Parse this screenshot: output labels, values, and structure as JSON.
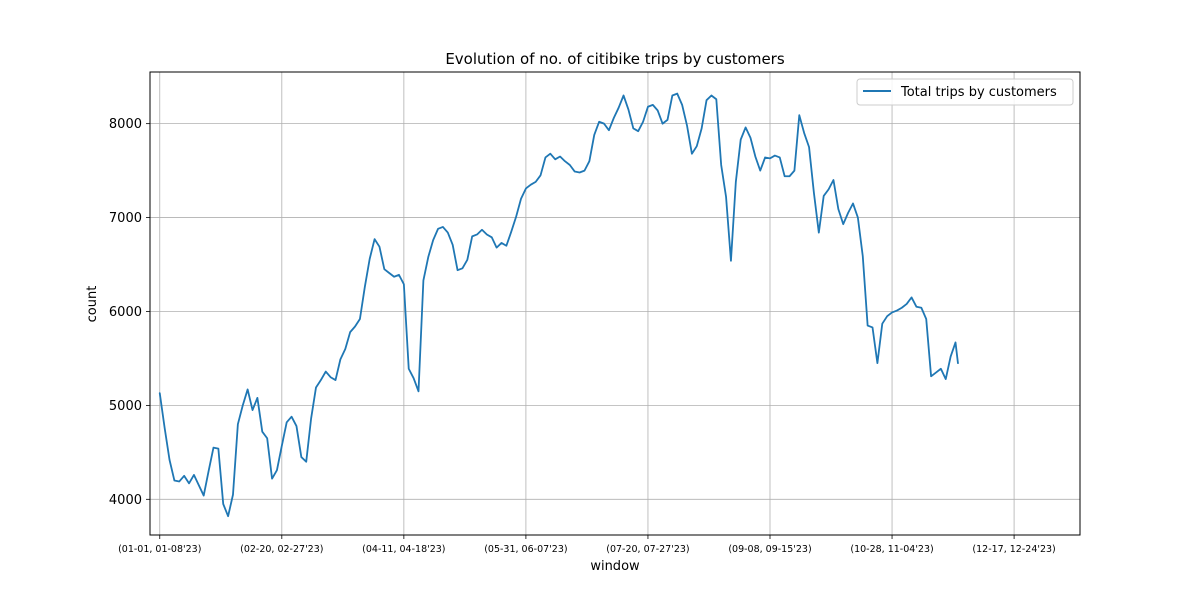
{
  "chart_data": {
    "type": "line",
    "title": "Evolution of no. of citibike trips by customers",
    "xlabel": "window",
    "ylabel": "count",
    "xlim": [
      -4,
      377
    ],
    "ylim": [
      3620,
      8550
    ],
    "yticks": [
      4000,
      5000,
      6000,
      7000,
      8000
    ],
    "xticks": [
      {
        "pos": 0,
        "label": "(01-01, 01-08'23)"
      },
      {
        "pos": 50,
        "label": "(02-20, 02-27'23)"
      },
      {
        "pos": 100,
        "label": "(04-11, 04-18'23)"
      },
      {
        "pos": 150,
        "label": "(05-31, 06-07'23)"
      },
      {
        "pos": 200,
        "label": "(07-20, 07-27'23)"
      },
      {
        "pos": 250,
        "label": "(09-08, 09-15'23)"
      },
      {
        "pos": 300,
        "label": "(10-28, 11-04'23)"
      },
      {
        "pos": 350,
        "label": "(12-17, 12-24'23)"
      }
    ],
    "grid": true,
    "legend_position": "top-right",
    "series": [
      {
        "name": "Total trips by customers",
        "color": "#1f77b4",
        "points": [
          [
            0,
            5130
          ],
          [
            2,
            4760
          ],
          [
            4,
            4420
          ],
          [
            6,
            4200
          ],
          [
            8,
            4190
          ],
          [
            10,
            4250
          ],
          [
            12,
            4170
          ],
          [
            14,
            4260
          ],
          [
            16,
            4150
          ],
          [
            18,
            4040
          ],
          [
            20,
            4300
          ],
          [
            22,
            4550
          ],
          [
            24,
            4540
          ],
          [
            26,
            3950
          ],
          [
            28,
            3820
          ],
          [
            30,
            4050
          ],
          [
            32,
            4800
          ],
          [
            34,
            5000
          ],
          [
            36,
            5170
          ],
          [
            38,
            4950
          ],
          [
            40,
            5080
          ],
          [
            42,
            4720
          ],
          [
            44,
            4650
          ],
          [
            46,
            4220
          ],
          [
            48,
            4310
          ],
          [
            50,
            4570
          ],
          [
            52,
            4820
          ],
          [
            54,
            4880
          ],
          [
            56,
            4780
          ],
          [
            58,
            4450
          ],
          [
            60,
            4400
          ],
          [
            62,
            4860
          ],
          [
            64,
            5190
          ],
          [
            66,
            5270
          ],
          [
            68,
            5360
          ],
          [
            70,
            5300
          ],
          [
            72,
            5270
          ],
          [
            74,
            5490
          ],
          [
            76,
            5600
          ],
          [
            78,
            5780
          ],
          [
            80,
            5840
          ],
          [
            82,
            5920
          ],
          [
            84,
            6260
          ],
          [
            86,
            6560
          ],
          [
            88,
            6770
          ],
          [
            90,
            6690
          ],
          [
            92,
            6450
          ],
          [
            94,
            6410
          ],
          [
            96,
            6370
          ],
          [
            98,
            6390
          ],
          [
            100,
            6290
          ],
          [
            102,
            5390
          ],
          [
            104,
            5290
          ],
          [
            106,
            5150
          ],
          [
            108,
            6330
          ],
          [
            110,
            6580
          ],
          [
            112,
            6760
          ],
          [
            114,
            6880
          ],
          [
            116,
            6900
          ],
          [
            118,
            6840
          ],
          [
            120,
            6710
          ],
          [
            122,
            6440
          ],
          [
            124,
            6460
          ],
          [
            126,
            6550
          ],
          [
            128,
            6800
          ],
          [
            130,
            6820
          ],
          [
            132,
            6870
          ],
          [
            134,
            6820
          ],
          [
            136,
            6790
          ],
          [
            138,
            6680
          ],
          [
            140,
            6730
          ],
          [
            142,
            6700
          ],
          [
            144,
            6850
          ],
          [
            146,
            7010
          ],
          [
            148,
            7200
          ],
          [
            150,
            7310
          ],
          [
            152,
            7350
          ],
          [
            154,
            7380
          ],
          [
            156,
            7450
          ],
          [
            158,
            7640
          ],
          [
            160,
            7680
          ],
          [
            162,
            7620
          ],
          [
            164,
            7650
          ],
          [
            166,
            7600
          ],
          [
            168,
            7560
          ],
          [
            170,
            7490
          ],
          [
            172,
            7480
          ],
          [
            174,
            7500
          ],
          [
            176,
            7600
          ],
          [
            178,
            7880
          ],
          [
            180,
            8020
          ],
          [
            182,
            8000
          ],
          [
            184,
            7930
          ],
          [
            186,
            8060
          ],
          [
            188,
            8170
          ],
          [
            190,
            8300
          ],
          [
            192,
            8150
          ],
          [
            194,
            7950
          ],
          [
            196,
            7920
          ],
          [
            198,
            8020
          ],
          [
            200,
            8180
          ],
          [
            202,
            8200
          ],
          [
            204,
            8140
          ],
          [
            206,
            8000
          ],
          [
            208,
            8040
          ],
          [
            210,
            8300
          ],
          [
            212,
            8320
          ],
          [
            214,
            8200
          ],
          [
            216,
            7980
          ],
          [
            218,
            7680
          ],
          [
            220,
            7760
          ],
          [
            222,
            7950
          ],
          [
            224,
            8250
          ],
          [
            226,
            8300
          ],
          [
            228,
            8260
          ],
          [
            230,
            7560
          ],
          [
            232,
            7220
          ],
          [
            234,
            6540
          ],
          [
            236,
            7380
          ],
          [
            238,
            7830
          ],
          [
            240,
            7960
          ],
          [
            242,
            7850
          ],
          [
            244,
            7650
          ],
          [
            246,
            7500
          ],
          [
            248,
            7640
          ],
          [
            250,
            7630
          ],
          [
            252,
            7660
          ],
          [
            254,
            7640
          ],
          [
            256,
            7440
          ],
          [
            258,
            7440
          ],
          [
            260,
            7500
          ],
          [
            262,
            8090
          ],
          [
            264,
            7900
          ],
          [
            266,
            7750
          ],
          [
            268,
            7260
          ],
          [
            270,
            6840
          ],
          [
            272,
            7230
          ],
          [
            274,
            7300
          ],
          [
            276,
            7400
          ],
          [
            278,
            7090
          ],
          [
            280,
            6930
          ],
          [
            282,
            7050
          ],
          [
            284,
            7150
          ],
          [
            286,
            7000
          ],
          [
            288,
            6590
          ],
          [
            290,
            5850
          ],
          [
            292,
            5830
          ],
          [
            294,
            5450
          ],
          [
            296,
            5870
          ],
          [
            298,
            5950
          ],
          [
            300,
            5990
          ],
          [
            302,
            6010
          ],
          [
            304,
            6040
          ],
          [
            306,
            6080
          ],
          [
            308,
            6150
          ],
          [
            310,
            6050
          ],
          [
            312,
            6040
          ],
          [
            314,
            5920
          ],
          [
            316,
            5310
          ],
          [
            318,
            5350
          ],
          [
            320,
            5390
          ],
          [
            322,
            5280
          ],
          [
            324,
            5520
          ],
          [
            326,
            5670
          ],
          [
            327,
            5450
          ]
        ]
      }
    ]
  }
}
